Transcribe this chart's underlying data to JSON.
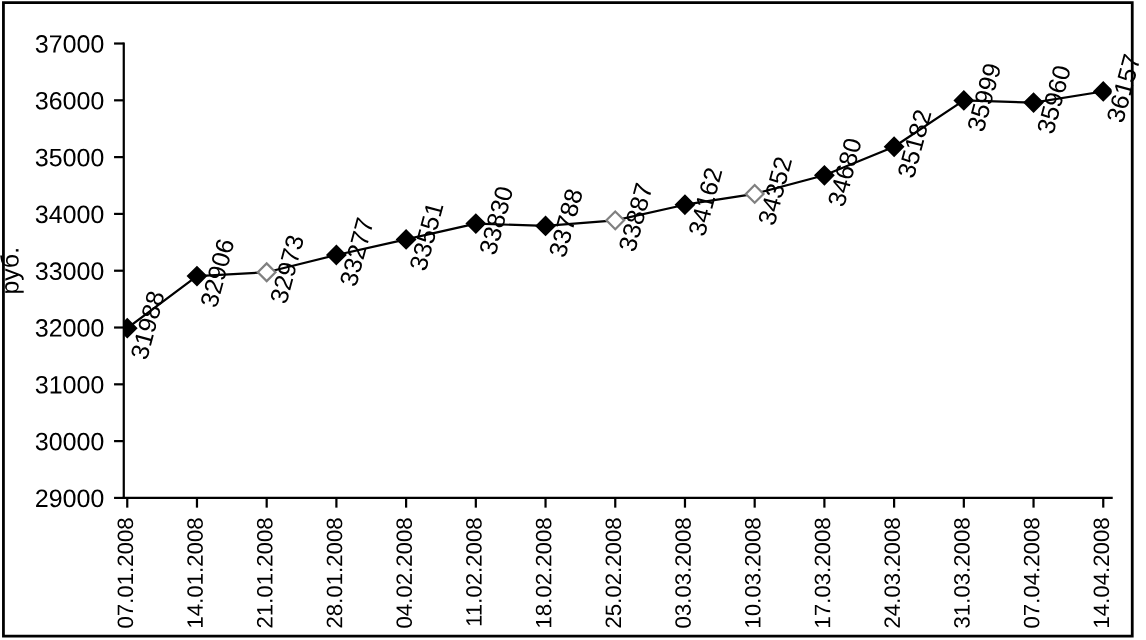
{
  "chart_data": {
    "type": "line",
    "ylabel": "руб.",
    "categories": [
      "07.01.2008",
      "14.01.2008",
      "21.01.2008",
      "28.01.2008",
      "04.02.2008",
      "11.02.2008",
      "18.02.2008",
      "25.02.2008",
      "03.03.2008",
      "10.03.2008",
      "17.03.2008",
      "24.03.2008",
      "31.03.2008",
      "07.04.2008",
      "14.04.2008"
    ],
    "series": [
      {
        "color": "#000000",
        "values": [
          31988,
          32906,
          32973,
          33277,
          33551,
          33830,
          33788,
          33887,
          34162,
          34352,
          34680,
          35182,
          35999,
          35960,
          36157
        ],
        "colors": [
          "#000000",
          "#000000",
          "#ffffff",
          "#000000",
          "#000000",
          "#000000",
          "#000000",
          "#ffffff",
          "#000000",
          "#ffffff",
          "#000000",
          "#000000",
          "#000000",
          "#000000",
          "#000000"
        ]
      }
    ],
    "ylim": [
      29000,
      37000
    ],
    "yticks": [
      29000,
      30000,
      31000,
      32000,
      33000,
      34000,
      35000,
      36000,
      37000
    ],
    "marker": "diamond",
    "line_style": "solid",
    "data_labels": true,
    "grid": false
  }
}
